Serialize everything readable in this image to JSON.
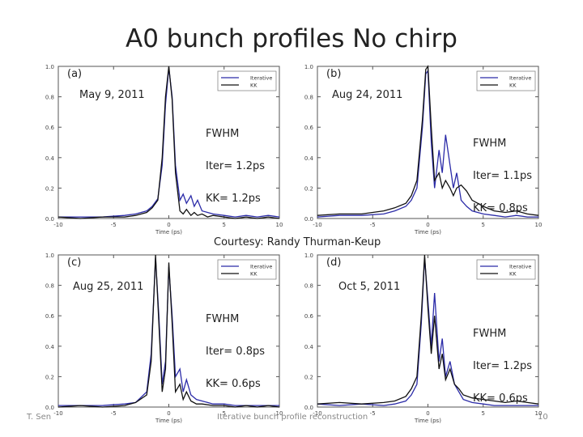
{
  "slide": {
    "title": "A0 bunch profiles  No chirp",
    "courtesy": "Courtesy: Randy Thurman-Keup",
    "footer_left": "T. Sen",
    "footer_center": "Iterative bunch profile reconstruction",
    "page_number": "10"
  },
  "colors": {
    "iterative": "#2b2ba8",
    "kk": "#111111"
  },
  "panels": [
    {
      "label": "(a)",
      "date": "May 9, 2011",
      "fwhm": {
        "heading": "FWHM",
        "iter": "Iter= 1.2ps",
        "kk": "KK= 1.2ps"
      },
      "legend": [
        "Iterative",
        "KK"
      ],
      "xlabel": "Time (ps)"
    },
    {
      "label": "(b)",
      "date": "Aug 24, 2011",
      "fwhm": {
        "heading": "FWHM",
        "iter": "Iter= 1.1ps",
        "kk": "KK= 0.8ps"
      },
      "legend": [
        "Iterative",
        "KK"
      ],
      "xlabel": "Time (ps)"
    },
    {
      "label": "(c)",
      "date": "Aug 25, 2011",
      "fwhm": {
        "heading": "FWHM",
        "iter": "Iter= 0.8ps",
        "kk": "KK= 0.6ps"
      },
      "legend": [
        "Iterative",
        "KK"
      ],
      "xlabel": "Time (ps)"
    },
    {
      "label": "(d)",
      "date": "Oct 5, 2011",
      "fwhm": {
        "heading": "FWHM",
        "iter": "Iter= 1.2ps",
        "kk": "KK= 0.6ps"
      },
      "legend": [
        "Iterative",
        "KK"
      ],
      "xlabel": "Time (ps)"
    }
  ],
  "chart_data": [
    {
      "type": "line",
      "label": "(a)",
      "xlabel": "Time (ps)",
      "xlim": [
        -10,
        10
      ],
      "ylim": [
        0,
        1.0
      ],
      "xticks": [
        -10,
        -5,
        0,
        5,
        10
      ],
      "yticks": [
        0.0,
        0.2,
        0.4,
        0.6,
        0.8,
        1.0
      ],
      "series": [
        {
          "name": "Iterative",
          "color": "#2b2ba8",
          "x": [
            -10,
            -8,
            -6,
            -4,
            -3,
            -2,
            -1.5,
            -1,
            -0.6,
            -0.3,
            0,
            0.3,
            0.6,
            1,
            1.3,
            1.6,
            2,
            2.3,
            2.6,
            3,
            3.5,
            4,
            5,
            6,
            7,
            8,
            9,
            10
          ],
          "y": [
            0.01,
            0.01,
            0.01,
            0.02,
            0.03,
            0.05,
            0.08,
            0.13,
            0.35,
            0.75,
            0.99,
            0.8,
            0.35,
            0.12,
            0.16,
            0.1,
            0.15,
            0.08,
            0.12,
            0.05,
            0.04,
            0.03,
            0.02,
            0.01,
            0.02,
            0.01,
            0.02,
            0.01
          ]
        },
        {
          "name": "KK",
          "color": "#111111",
          "x": [
            -10,
            -8,
            -6,
            -4,
            -3,
            -2,
            -1.5,
            -1,
            -0.6,
            -0.3,
            0,
            0.3,
            0.6,
            1,
            1.3,
            1.6,
            2,
            2.3,
            2.6,
            3,
            3.5,
            4,
            5,
            6,
            7,
            8,
            9,
            10
          ],
          "y": [
            0.01,
            0.0,
            0.01,
            0.01,
            0.02,
            0.04,
            0.07,
            0.12,
            0.4,
            0.8,
            1.0,
            0.78,
            0.3,
            0.05,
            0.03,
            0.06,
            0.02,
            0.04,
            0.02,
            0.03,
            0.01,
            0.02,
            0.01,
            0.0,
            0.01,
            0.0,
            0.01,
            0.0
          ]
        }
      ]
    },
    {
      "type": "line",
      "label": "(b)",
      "xlabel": "Time (ps)",
      "xlim": [
        -10,
        10
      ],
      "ylim": [
        0,
        1.0
      ],
      "xticks": [
        -10,
        -5,
        0,
        5,
        10
      ],
      "yticks": [
        0.0,
        0.2,
        0.4,
        0.6,
        0.8,
        1.0
      ],
      "series": [
        {
          "name": "Iterative",
          "color": "#2b2ba8",
          "x": [
            -10,
            -8,
            -6,
            -4,
            -3,
            -2,
            -1.5,
            -1,
            -0.5,
            -0.2,
            0,
            0.3,
            0.6,
            1,
            1.3,
            1.6,
            2,
            2.3,
            2.6,
            3,
            3.5,
            4,
            5,
            6,
            7,
            8,
            9,
            10
          ],
          "y": [
            0.01,
            0.02,
            0.02,
            0.03,
            0.05,
            0.08,
            0.12,
            0.2,
            0.6,
            0.95,
            0.97,
            0.5,
            0.2,
            0.45,
            0.3,
            0.55,
            0.35,
            0.2,
            0.3,
            0.12,
            0.08,
            0.05,
            0.03,
            0.02,
            0.01,
            0.02,
            0.01,
            0.01
          ]
        },
        {
          "name": "KK",
          "color": "#111111",
          "x": [
            -10,
            -8,
            -6,
            -4,
            -3,
            -2,
            -1.5,
            -1,
            -0.5,
            -0.2,
            0,
            0.3,
            0.6,
            1,
            1.3,
            1.6,
            2,
            2.3,
            2.6,
            3,
            3.5,
            4,
            5,
            6,
            7,
            8,
            9,
            10
          ],
          "y": [
            0.02,
            0.03,
            0.03,
            0.05,
            0.07,
            0.1,
            0.15,
            0.25,
            0.65,
            0.98,
            1.0,
            0.6,
            0.25,
            0.3,
            0.2,
            0.25,
            0.2,
            0.15,
            0.2,
            0.22,
            0.18,
            0.12,
            0.08,
            0.05,
            0.04,
            0.05,
            0.03,
            0.02
          ]
        }
      ]
    },
    {
      "type": "line",
      "label": "(c)",
      "xlabel": "Time (ps)",
      "xlim": [
        -10,
        10
      ],
      "ylim": [
        0,
        1.0
      ],
      "xticks": [
        -10,
        -5,
        0,
        5,
        10
      ],
      "yticks": [
        0.0,
        0.2,
        0.4,
        0.6,
        0.8,
        1.0
      ],
      "series": [
        {
          "name": "Iterative",
          "color": "#2b2ba8",
          "x": [
            -10,
            -8,
            -6,
            -4,
            -3,
            -2,
            -1.6,
            -1.2,
            -0.9,
            -0.6,
            -0.3,
            0,
            0.3,
            0.6,
            1,
            1.3,
            1.6,
            2,
            2.5,
            3,
            4,
            5,
            6,
            7,
            8,
            9,
            10
          ],
          "y": [
            0.01,
            0.01,
            0.01,
            0.02,
            0.03,
            0.1,
            0.35,
            0.98,
            0.6,
            0.15,
            0.3,
            0.92,
            0.6,
            0.2,
            0.25,
            0.1,
            0.18,
            0.08,
            0.05,
            0.04,
            0.02,
            0.02,
            0.01,
            0.01,
            0.01,
            0.01,
            0.01
          ]
        },
        {
          "name": "KK",
          "color": "#111111",
          "x": [
            -10,
            -8,
            -6,
            -4,
            -3,
            -2,
            -1.6,
            -1.2,
            -0.9,
            -0.6,
            -0.3,
            0,
            0.3,
            0.6,
            1,
            1.3,
            1.6,
            2,
            2.5,
            3,
            4,
            5,
            6,
            7,
            8,
            9,
            10
          ],
          "y": [
            0.0,
            0.01,
            0.0,
            0.01,
            0.03,
            0.08,
            0.3,
            1.0,
            0.55,
            0.1,
            0.25,
            0.95,
            0.55,
            0.1,
            0.15,
            0.05,
            0.1,
            0.04,
            0.02,
            0.02,
            0.01,
            0.01,
            0.0,
            0.01,
            0.0,
            0.01,
            0.0
          ]
        }
      ]
    },
    {
      "type": "line",
      "label": "(d)",
      "xlabel": "Time (ps)",
      "xlim": [
        -10,
        10
      ],
      "ylim": [
        0,
        1.0
      ],
      "xticks": [
        -10,
        -5,
        0,
        5,
        10
      ],
      "yticks": [
        0.0,
        0.2,
        0.4,
        0.6,
        0.8,
        1.0
      ],
      "series": [
        {
          "name": "Iterative",
          "color": "#2b2ba8",
          "x": [
            -10,
            -8,
            -6,
            -4,
            -3,
            -2,
            -1.5,
            -1,
            -0.6,
            -0.3,
            0,
            0.3,
            0.6,
            1,
            1.3,
            1.6,
            2,
            2.4,
            2.8,
            3.2,
            4,
            5,
            6,
            7,
            8,
            9,
            10
          ],
          "y": [
            0.02,
            0.01,
            0.02,
            0.01,
            0.02,
            0.04,
            0.08,
            0.15,
            0.55,
            0.98,
            0.7,
            0.4,
            0.75,
            0.3,
            0.45,
            0.2,
            0.3,
            0.15,
            0.1,
            0.05,
            0.03,
            0.02,
            0.01,
            0.01,
            0.01,
            0.01,
            0.01
          ]
        },
        {
          "name": "KK",
          "color": "#111111",
          "x": [
            -10,
            -8,
            -6,
            -4,
            -3,
            -2,
            -1.5,
            -1,
            -0.6,
            -0.3,
            0,
            0.3,
            0.6,
            1,
            1.3,
            1.6,
            2,
            2.4,
            2.8,
            3.2,
            4,
            5,
            6,
            7,
            8,
            9,
            10
          ],
          "y": [
            0.02,
            0.03,
            0.02,
            0.03,
            0.04,
            0.07,
            0.12,
            0.2,
            0.6,
            1.0,
            0.65,
            0.35,
            0.6,
            0.25,
            0.35,
            0.18,
            0.25,
            0.15,
            0.12,
            0.08,
            0.06,
            0.05,
            0.04,
            0.03,
            0.04,
            0.03,
            0.02
          ]
        }
      ]
    }
  ]
}
